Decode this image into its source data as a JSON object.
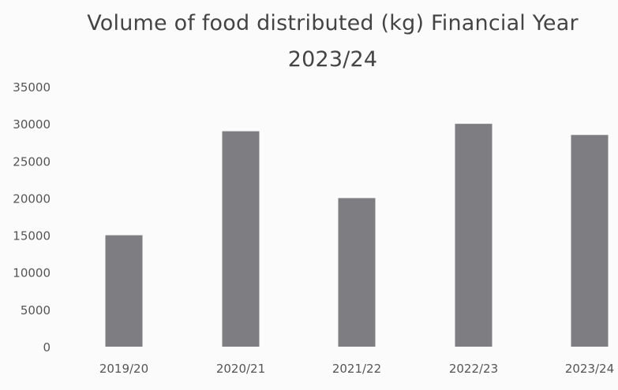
{
  "chart_data": {
    "type": "bar",
    "title": "Volume of food distributed (kg) Financial Year 2023/24",
    "title_lines": [
      "Volume of food distributed (kg) Financial Year",
      "2023/24"
    ],
    "categories": [
      "2019/20",
      "2020/21",
      "2021/22",
      "2022/23",
      "2023/24"
    ],
    "values": [
      15000,
      29000,
      20000,
      30000,
      28500
    ],
    "ylim": [
      0,
      35000
    ],
    "yticks": [
      0,
      5000,
      10000,
      15000,
      20000,
      25000,
      30000,
      35000
    ],
    "xlabel": "",
    "ylabel": "",
    "grid": false,
    "legend": "none",
    "bar_color": "#7d7d82"
  }
}
